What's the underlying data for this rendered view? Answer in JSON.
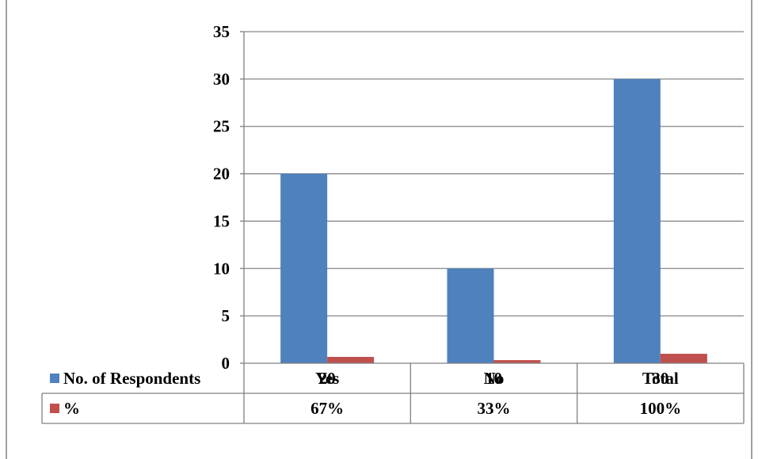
{
  "chart_data": {
    "type": "bar",
    "categories": [
      "Yes",
      "No",
      "Total"
    ],
    "series": [
      {
        "name": "No. of Respondents",
        "values": [
          20,
          10,
          30
        ],
        "table_values": [
          "20",
          "10",
          "30"
        ],
        "color": "#4F81BD"
      },
      {
        "name": "%",
        "values": [
          0.67,
          0.33,
          1.0
        ],
        "table_values": [
          "67%",
          "33%",
          "100%"
        ],
        "color": "#C0504D"
      }
    ],
    "ylim": [
      0,
      35
    ],
    "yticks": [
      "0",
      "5",
      "10",
      "15",
      "20",
      "25",
      "30",
      "35"
    ],
    "xlabel": "",
    "ylabel": "",
    "title": "",
    "grid": true,
    "legend": "data-table-left",
    "gridline_color": "#868686",
    "border_color": "#808080"
  }
}
